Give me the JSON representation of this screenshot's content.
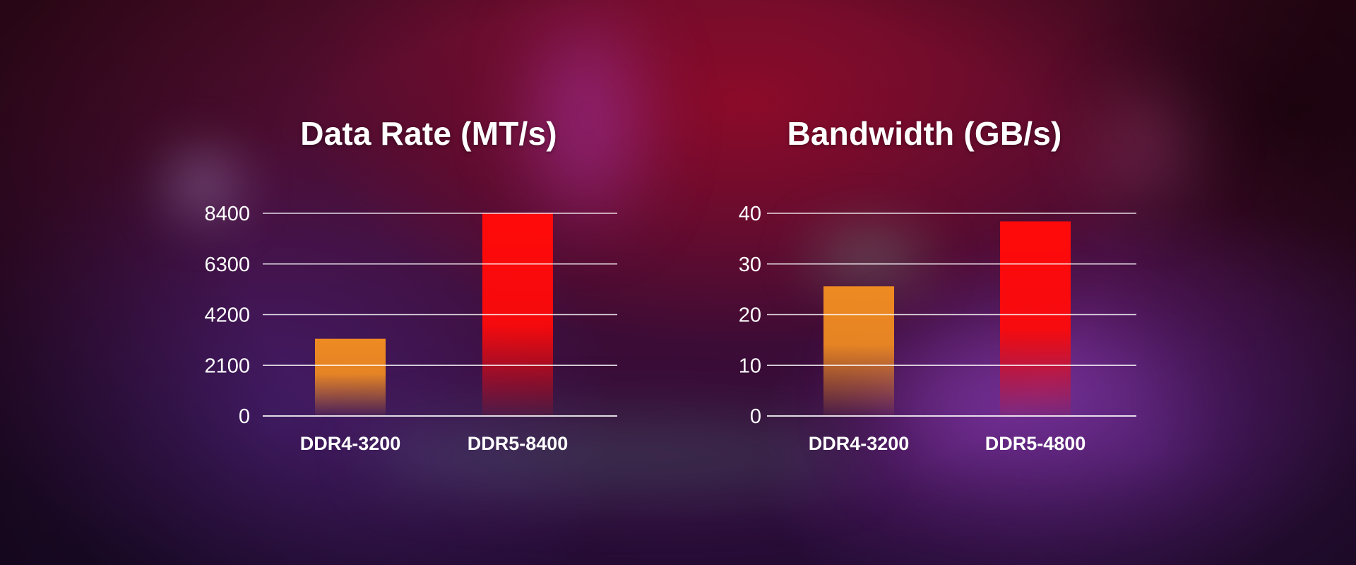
{
  "chart_data": [
    {
      "type": "bar",
      "title": "Data Rate (MT/s)",
      "categories": [
        "DDR4-3200",
        "DDR5-8400"
      ],
      "values": [
        3200,
        8400
      ],
      "yticks": [
        "0",
        "2100",
        "4200",
        "6300",
        "8400"
      ],
      "ylim": [
        0,
        8400
      ],
      "colors": [
        "#ee8a22",
        "#ff0a0a"
      ],
      "grid": true
    },
    {
      "type": "bar",
      "title": "Bandwidth (GB/s)",
      "categories": [
        "DDR4-3200",
        "DDR5-4800"
      ],
      "values": [
        25.6,
        38.4
      ],
      "yticks": [
        "0",
        "10",
        "20",
        "30",
        "40"
      ],
      "ylim": [
        0,
        40
      ],
      "colors": [
        "#ee8a22",
        "#ff0a0a"
      ],
      "grid": true
    }
  ]
}
